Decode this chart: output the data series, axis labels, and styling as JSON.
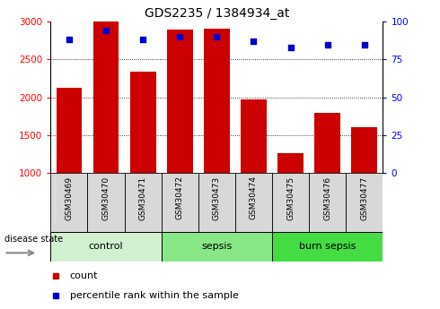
{
  "title": "GDS2235 / 1384934_at",
  "samples": [
    "GSM30469",
    "GSM30470",
    "GSM30471",
    "GSM30472",
    "GSM30473",
    "GSM30474",
    "GSM30475",
    "GSM30476",
    "GSM30477"
  ],
  "counts": [
    2130,
    3000,
    2340,
    2900,
    2910,
    1970,
    1260,
    1790,
    1600
  ],
  "percentile_ranks": [
    88,
    94,
    88,
    90,
    90,
    87,
    83,
    85,
    85
  ],
  "ylim_left": [
    1000,
    3000
  ],
  "ylim_right": [
    0,
    100
  ],
  "yticks_left": [
    1000,
    1500,
    2000,
    2500,
    3000
  ],
  "yticks_right": [
    0,
    25,
    50,
    75,
    100
  ],
  "bar_color": "#cc0000",
  "dot_color": "#0000cc",
  "title_fontsize": 10,
  "group_configs": [
    {
      "label": "control",
      "start": 0,
      "end": 2,
      "color": "#d0f0d0"
    },
    {
      "label": "sepsis",
      "start": 3,
      "end": 5,
      "color": "#88e888"
    },
    {
      "label": "burn sepsis",
      "start": 6,
      "end": 8,
      "color": "#44dd44"
    }
  ],
  "legend_count_label": "count",
  "legend_pct_label": "percentile rank within the sample",
  "sample_box_color": "#d8d8d8",
  "disease_state_label": "disease state"
}
